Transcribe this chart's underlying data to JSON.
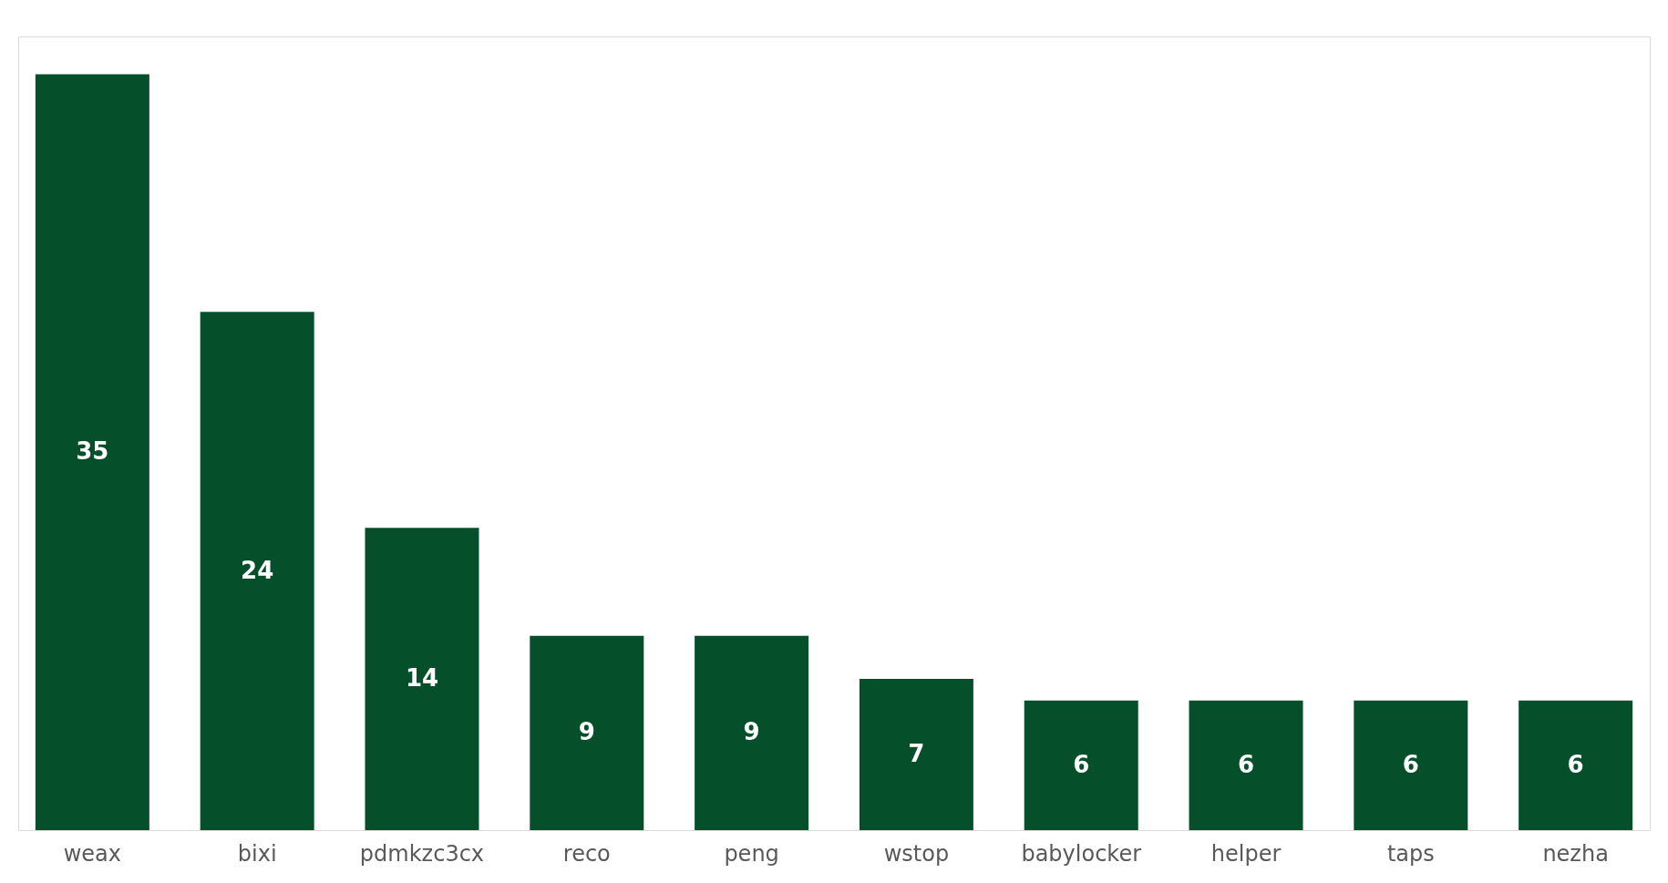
{
  "chart_data": {
    "type": "bar",
    "categories": [
      "weax",
      "bixi",
      "pdmkzc3cx",
      "reco",
      "peng",
      "wstop",
      "babylocker",
      "helper",
      "taps",
      "nezha"
    ],
    "values": [
      35,
      24,
      14,
      9,
      9,
      7,
      6,
      6,
      6,
      6
    ],
    "color": "#05502b",
    "data_labels": true
  }
}
